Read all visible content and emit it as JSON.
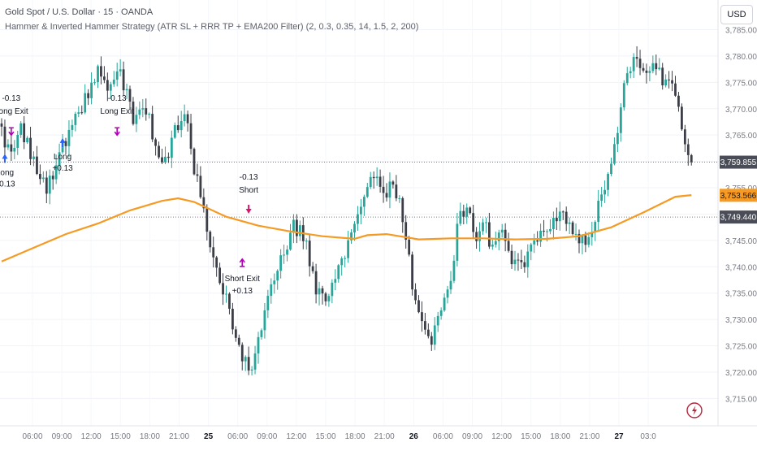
{
  "header": {
    "title": "Gold Spot / U.S. Dollar · 15 · OANDA",
    "strategy": "Hammer & Inverted Hammer Strategy (ATR SL + RRR TP + EMA200 Filter) (2, 0.3, 0.35, 14, 1.5, 2, 200)"
  },
  "currency_button": "USD",
  "colors": {
    "up": "#26a69a",
    "down": "#3b3e47",
    "ema": "#f59a23",
    "long_marker": "#2962ff",
    "short_marker": "#d9166a",
    "exit_marker": "#b000b5",
    "label_dark": "#4a4d57",
    "label_orange": "#f59a23"
  },
  "chart_data": {
    "type": "candlestick",
    "symbol": "XAUUSD",
    "timeframe": "15",
    "ylim": [
      3712,
      3788
    ],
    "y_ticks": [
      3715,
      3720,
      3725,
      3730,
      3735,
      3740,
      3745,
      3750,
      3755,
      3760,
      3765,
      3770,
      3775,
      3780,
      3785
    ],
    "y_tick_labels": [
      "3,715.000",
      "3,720.000",
      "3,725.000",
      "3,730.000",
      "3,735.000",
      "3,740.000",
      "3,745.000",
      "3,750.000",
      "3,755.000",
      "3,760.000",
      "3,765.000",
      "3,770.000",
      "3,775.000",
      "3,780.000",
      "3,785.000"
    ],
    "x_ticks": [
      {
        "label": "06:00",
        "bold": false
      },
      {
        "label": "09:00",
        "bold": false
      },
      {
        "label": "12:00",
        "bold": false
      },
      {
        "label": "15:00",
        "bold": false
      },
      {
        "label": "18:00",
        "bold": false
      },
      {
        "label": "21:00",
        "bold": false
      },
      {
        "label": "25",
        "bold": true
      },
      {
        "label": "06:00",
        "bold": false
      },
      {
        "label": "09:00",
        "bold": false
      },
      {
        "label": "12:00",
        "bold": false
      },
      {
        "label": "15:00",
        "bold": false
      },
      {
        "label": "18:00",
        "bold": false
      },
      {
        "label": "21:00",
        "bold": false
      },
      {
        "label": "26",
        "bold": true
      },
      {
        "label": "06:00",
        "bold": false
      },
      {
        "label": "09:00",
        "bold": false
      },
      {
        "label": "12:00",
        "bold": false
      },
      {
        "label": "15:00",
        "bold": false
      },
      {
        "label": "18:00",
        "bold": false
      },
      {
        "label": "21:00",
        "bold": false
      },
      {
        "label": "27",
        "bold": true
      },
      {
        "label": "03:0",
        "bold": false
      }
    ],
    "price_path": [
      [
        0,
        3765
      ],
      [
        3,
        3762
      ],
      [
        6,
        3766
      ],
      [
        10,
        3760
      ],
      [
        14,
        3754
      ],
      [
        18,
        3761
      ],
      [
        22,
        3766
      ],
      [
        26,
        3772
      ],
      [
        30,
        3777
      ],
      [
        33,
        3773
      ],
      [
        37,
        3777
      ],
      [
        41,
        3768
      ],
      [
        45,
        3770
      ],
      [
        48,
        3763
      ],
      [
        51,
        3760
      ],
      [
        54,
        3766
      ],
      [
        57,
        3770
      ],
      [
        60,
        3759
      ],
      [
        63,
        3750
      ],
      [
        66,
        3741
      ],
      [
        70,
        3734
      ],
      [
        74,
        3725
      ],
      [
        78,
        3719
      ],
      [
        81,
        3729
      ],
      [
        84,
        3737
      ],
      [
        88,
        3743
      ],
      [
        91,
        3748
      ],
      [
        95,
        3745
      ],
      [
        98,
        3735
      ],
      [
        101,
        3733
      ],
      [
        104,
        3738
      ],
      [
        107,
        3742
      ],
      [
        110,
        3748
      ],
      [
        113,
        3753
      ],
      [
        116,
        3758
      ],
      [
        119,
        3754
      ],
      [
        122,
        3756
      ],
      [
        125,
        3750
      ],
      [
        128,
        3737
      ],
      [
        131,
        3730
      ],
      [
        134,
        3726
      ],
      [
        137,
        3731
      ],
      [
        140,
        3737
      ],
      [
        143,
        3752
      ],
      [
        146,
        3749
      ],
      [
        148,
        3744
      ],
      [
        150,
        3749
      ],
      [
        153,
        3743
      ],
      [
        156,
        3746
      ],
      [
        160,
        3740
      ],
      [
        163,
        3741
      ],
      [
        167,
        3745
      ],
      [
        171,
        3747
      ],
      [
        175,
        3750
      ],
      [
        180,
        3744
      ],
      [
        184,
        3746
      ],
      [
        188,
        3756
      ],
      [
        191,
        3762
      ],
      [
        194,
        3774
      ],
      [
        197,
        3779
      ],
      [
        200,
        3776
      ],
      [
        203,
        3780
      ],
      [
        206,
        3776
      ],
      [
        209,
        3775
      ],
      [
        212,
        3766
      ],
      [
        215,
        3760
      ]
    ],
    "ema200": [
      [
        0,
        3741.0
      ],
      [
        10,
        3743.6
      ],
      [
        20,
        3746.2
      ],
      [
        30,
        3748.2
      ],
      [
        40,
        3750.7
      ],
      [
        50,
        3752.5
      ],
      [
        55,
        3753.0
      ],
      [
        60,
        3752.3
      ],
      [
        70,
        3749.5
      ],
      [
        80,
        3747.8
      ],
      [
        90,
        3746.7
      ],
      [
        100,
        3745.8
      ],
      [
        110,
        3745.3
      ],
      [
        114,
        3746.0
      ],
      [
        120,
        3746.2
      ],
      [
        130,
        3745.2
      ],
      [
        140,
        3745.4
      ],
      [
        150,
        3745.4
      ],
      [
        160,
        3745.2
      ],
      [
        170,
        3745.3
      ],
      [
        180,
        3745.8
      ],
      [
        190,
        3747.5
      ],
      [
        200,
        3750.3
      ],
      [
        210,
        3753.3
      ],
      [
        215,
        3753.6
      ]
    ],
    "price_labels": [
      {
        "value": 3759.855,
        "text": "3,759.855",
        "style": "dark"
      },
      {
        "value": 3753.566,
        "text": "3,753.566",
        "style": "orange"
      },
      {
        "value": 3749.44,
        "text": "3,749.440",
        "style": "dark"
      }
    ],
    "signals": [
      {
        "kind": "long-entry",
        "x": 1,
        "price": 3760.5,
        "lines": [
          "Long",
          "+0.13"
        ]
      },
      {
        "kind": "long-exit",
        "x": 3,
        "price": 3765.3,
        "lines": [
          "-0.13",
          "Long Exit"
        ]
      },
      {
        "kind": "long-entry",
        "x": 19,
        "price": 3763.5,
        "lines": [
          "Long",
          "+0.13"
        ]
      },
      {
        "kind": "long-exit",
        "x": 36,
        "price": 3765.3,
        "lines": [
          "-0.13",
          "Long Exit"
        ]
      },
      {
        "kind": "short-entry",
        "x": 77,
        "price": 3751.0,
        "lines": [
          "-0.13",
          "Short"
        ]
      },
      {
        "kind": "short-exit",
        "x": 75,
        "price": 3741.0,
        "lines": [
          "Short Exit",
          "+0.13"
        ]
      }
    ]
  }
}
